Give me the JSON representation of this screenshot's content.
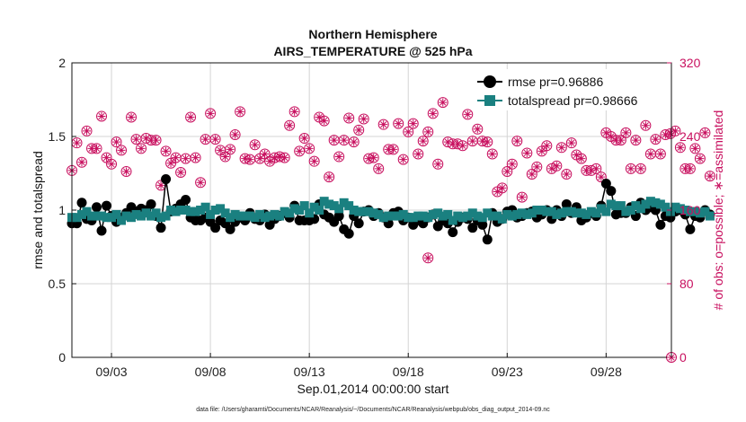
{
  "chart_data": {
    "type": "line",
    "title_line1": "Northern Hemisphere",
    "title_line2": "AIRS_TEMPERATURE @ 525 hPa",
    "xlabel": "Sep.01,2014 00:00:00 start",
    "ylabel_left": "rmse and totalspread",
    "ylabel_right": "# of obs: o=possible; ∗=assimilated",
    "footnote": "data file: /Users/gharamti/Documents/NCAR/Reanalysis/~/Documents/NCAR/Reanalysis/webpub/obs_diag_output_2014-09.nc",
    "xlim": [
      1,
      31.3
    ],
    "ylim_left": [
      0,
      2
    ],
    "ylim_right": [
      0,
      320
    ],
    "x_ticks": [
      3,
      8,
      13,
      18,
      23,
      28
    ],
    "x_tick_labels": [
      "09/03",
      "09/08",
      "09/13",
      "09/18",
      "09/23",
      "09/28"
    ],
    "y_ticks_left": [
      0,
      0.5,
      1,
      1.5,
      2
    ],
    "y_tick_labels_left": [
      "0",
      "0.5",
      "1",
      "1.5",
      "2"
    ],
    "y_ticks_right": [
      0,
      80,
      160,
      240,
      320
    ],
    "y_tick_labels_right": [
      "0",
      "80",
      "160",
      "240",
      "320"
    ],
    "legend": [
      {
        "label": "rmse pr=0.96886",
        "color": "#000000",
        "marker": "circle"
      },
      {
        "label": "totalspread pr=0.98666",
        "color": "#1a8080",
        "marker": "square"
      }
    ],
    "colors": {
      "rmse": "#000000",
      "spread": "#1a8080",
      "obs": "#c8105f",
      "grid": "#d4d4d4"
    },
    "rmse_values": [
      0.91,
      0.91,
      1.05,
      0.94,
      0.93,
      1.02,
      0.86,
      1.03,
      0.96,
      0.92,
      0.95,
      0.98,
      1.02,
      0.99,
      1.01,
      1.0,
      1.04,
      0.96,
      0.88,
      1.21,
      0.99,
      1.01,
      1.04,
      1.07,
      0.95,
      0.93,
      0.93,
      0.95,
      0.92,
      0.88,
      0.93,
      0.91,
      0.87,
      0.92,
      0.95,
      0.93,
      0.98,
      0.94,
      0.93,
      0.97,
      0.9,
      0.94,
      0.96,
      0.98,
      0.95,
      1.03,
      0.93,
      0.93,
      0.93,
      0.94,
      1.04,
      0.97,
      0.95,
      0.92,
      0.96,
      0.87,
      0.84,
      0.96,
      0.91,
      0.99,
      1.0,
      0.96,
      0.98,
      0.95,
      0.91,
      0.98,
      0.99,
      0.93,
      0.95,
      0.9,
      0.93,
      0.91,
      0.95,
      0.97,
      0.89,
      0.93,
      0.91,
      0.85,
      0.92,
      0.95,
      0.94,
      0.88,
      0.93,
      0.9,
      0.8,
      0.98,
      0.92,
      0.94,
      0.99,
      1.0,
      0.95,
      0.96,
      0.98,
      0.99,
      0.95,
      0.97,
      1.0,
      0.94,
      1.0,
      0.96,
      1.04,
      0.98,
      1.02,
      0.93,
      0.95,
      0.98,
      0.96,
      1.03,
      1.18,
      1.13,
      0.97,
      0.98,
      0.98,
      1.02,
      0.96,
      1.05,
      1.0,
      1.02,
      1.0,
      0.9,
      0.96,
      0.95,
      0.99,
      1.0,
      0.97,
      0.87,
      0.96,
      0.95,
      1.0,
      0.97
    ],
    "spread_values": [
      0.95,
      0.95,
      0.97,
      0.99,
      0.96,
      0.96,
      0.96,
      0.95,
      0.95,
      0.97,
      0.93,
      0.96,
      0.95,
      0.97,
      0.96,
      0.98,
      0.96,
      0.98,
      0.95,
      0.96,
      1.0,
      0.99,
      1.0,
      1.0,
      0.99,
      0.99,
      1.0,
      1.02,
      0.97,
      1.0,
      1.01,
      0.98,
      0.95,
      0.97,
      0.96,
      0.96,
      0.96,
      0.95,
      0.97,
      0.95,
      0.96,
      0.97,
      0.96,
      0.99,
      0.98,
      1.01,
      1.0,
      1.03,
      0.98,
      1.02,
      1.0,
      1.06,
      1.04,
      1.03,
      1.01,
      1.05,
      1.03,
      1.0,
      0.99,
      0.99,
      0.99,
      0.98,
      0.97,
      0.95,
      0.96,
      0.96,
      0.96,
      0.97,
      0.95,
      0.95,
      0.96,
      0.96,
      0.95,
      0.97,
      0.98,
      0.96,
      0.97,
      0.93,
      0.96,
      0.95,
      0.96,
      0.98,
      0.96,
      0.95,
      0.98,
      0.96,
      0.96,
      0.94,
      0.97,
      0.96,
      0.97,
      0.98,
      0.97,
      0.98,
      1.0,
      1.0,
      0.99,
      0.99,
      0.97,
      0.98,
      0.99,
      0.99,
      0.98,
      0.98,
      0.97,
      0.99,
      0.98,
      1.01,
      0.99,
      1.04,
      1.03,
      1.03,
      0.99,
      1.0,
      1.03,
      1.01,
      1.04,
      1.06,
      1.05,
      1.04,
      1.02,
      0.99,
      1.02,
      1.01,
      1.0,
      0.99,
      0.99,
      0.98,
      0.99,
      0.96
    ],
    "obs_possible": [
      203,
      233,
      212,
      246,
      227,
      227,
      262,
      217,
      210,
      234,
      225,
      202,
      261,
      237,
      227,
      238,
      236,
      236,
      187,
      224,
      211,
      217,
      201,
      216,
      261,
      217,
      190,
      237,
      265,
      237,
      225,
      218,
      226,
      242,
      267,
      216,
      215,
      231,
      216,
      221,
      213,
      217,
      218,
      217,
      252,
      267,
      224,
      238,
      227,
      213,
      261,
      257,
      196,
      236,
      218,
      236,
      260,
      234,
      247,
      259,
      216,
      217,
      205,
      253,
      226,
      226,
      254,
      215,
      245,
      254,
      221,
      235,
      245,
      265,
      210,
      277,
      234,
      232,
      232,
      230,
      264,
      235,
      248,
      235,
      234,
      221,
      180,
      184,
      202,
      210,
      235,
      174,
      222,
      199,
      207,
      224,
      230,
      205,
      208,
      228,
      199,
      233,
      220,
      216,
      203,
      203,
      205,
      196,
      244,
      240,
      236,
      236,
      244,
      205,
      236,
      205,
      252,
      221,
      237,
      221,
      242,
      243,
      246,
      228,
      205,
      205,
      227,
      216,
      244,
      197
    ],
    "obs_assimilated": [
      203,
      233,
      212,
      246,
      227,
      227,
      262,
      217,
      210,
      234,
      225,
      202,
      261,
      237,
      227,
      238,
      236,
      236,
      187,
      224,
      211,
      217,
      201,
      216,
      261,
      217,
      190,
      237,
      265,
      237,
      225,
      218,
      226,
      242,
      267,
      216,
      215,
      231,
      216,
      221,
      213,
      217,
      218,
      217,
      252,
      267,
      224,
      238,
      227,
      213,
      261,
      257,
      196,
      236,
      218,
      236,
      260,
      234,
      247,
      259,
      216,
      217,
      205,
      253,
      226,
      226,
      254,
      215,
      245,
      254,
      221,
      235,
      245,
      265,
      210,
      277,
      234,
      232,
      232,
      230,
      264,
      235,
      248,
      235,
      234,
      221,
      180,
      184,
      202,
      210,
      235,
      174,
      222,
      199,
      207,
      224,
      230,
      205,
      208,
      228,
      199,
      233,
      220,
      216,
      203,
      203,
      205,
      196,
      244,
      240,
      236,
      236,
      244,
      205,
      236,
      205,
      252,
      221,
      237,
      221,
      242,
      243,
      246,
      228,
      205,
      205,
      227,
      216,
      244,
      197
    ],
    "obs_extra_possible": [
      {
        "x": 19.0,
        "value": 108
      },
      {
        "x": 31.3,
        "value": 0
      }
    ]
  }
}
